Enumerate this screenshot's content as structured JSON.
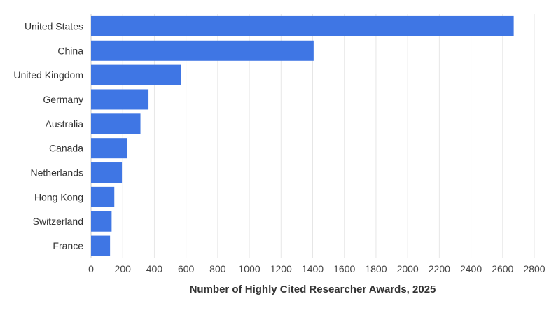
{
  "chart_data": {
    "type": "bar",
    "orientation": "horizontal",
    "title": "",
    "xlabel": "Number of Highly Cited Researcher Awards, 2025",
    "ylabel": "",
    "categories": [
      "United States",
      "China",
      "United Kingdom",
      "Germany",
      "Australia",
      "Canada",
      "Netherlands",
      "Hong Kong",
      "Switzerland",
      "France"
    ],
    "values": [
      2670,
      1406,
      569,
      363,
      312,
      226,
      195,
      147,
      130,
      120
    ],
    "xlim": [
      0,
      2800
    ],
    "xticks": [
      0,
      200,
      400,
      600,
      800,
      1000,
      1200,
      1400,
      1600,
      1800,
      2000,
      2200,
      2400,
      2600,
      2800
    ],
    "grid": "vertical",
    "legend": "none",
    "bar_color": "#3f76e4"
  }
}
